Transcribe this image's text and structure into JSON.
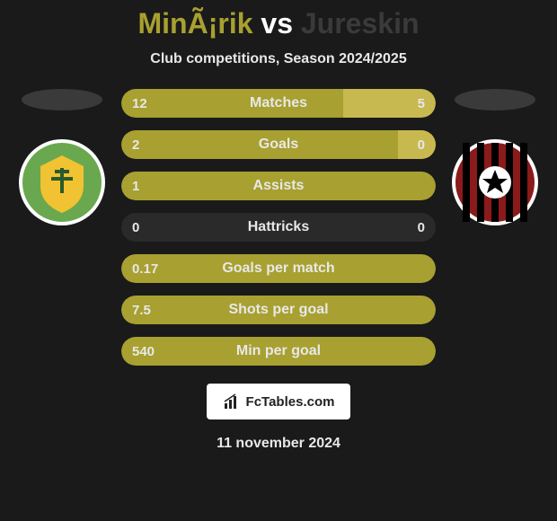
{
  "title": {
    "player1": "MinÃ¡rik",
    "vs": "vs",
    "player2": "Jureskin"
  },
  "subtitle": "Club competitions, Season 2024/2025",
  "footer": {
    "brand": "FcTables.com",
    "date": "11 november 2024"
  },
  "colors": {
    "p1_bar": "#a8a030",
    "p2_bar": "#c8b850",
    "track": "#2a2a2a",
    "bg": "#1a1a1a",
    "title_p1": "#a8a030",
    "title_p2": "#3a3a3a"
  },
  "club_logos": {
    "left": {
      "name": "MSK Zilina",
      "bg": "#6aa84f",
      "accent": "#f1c232"
    },
    "right": {
      "name": "FC Spartak Trnava",
      "bg": "#8b1a1a",
      "accent": "#000000"
    }
  },
  "stats": [
    {
      "label": "Matches",
      "p1": "12",
      "p2": "5",
      "p1_pct": 70.6,
      "p2_pct": 29.4,
      "show_p2_val": true
    },
    {
      "label": "Goals",
      "p1": "2",
      "p2": "0",
      "p1_pct": 100,
      "p2_pct": 12,
      "show_p2_val": true
    },
    {
      "label": "Assists",
      "p1": "1",
      "p2": "",
      "p1_pct": 100,
      "p2_pct": 0,
      "show_p2_val": false
    },
    {
      "label": "Hattricks",
      "p1": "0",
      "p2": "0",
      "p1_pct": 0,
      "p2_pct": 0,
      "show_p2_val": true
    },
    {
      "label": "Goals per match",
      "p1": "0.17",
      "p2": "",
      "p1_pct": 100,
      "p2_pct": 0,
      "show_p2_val": false
    },
    {
      "label": "Shots per goal",
      "p1": "7.5",
      "p2": "",
      "p1_pct": 100,
      "p2_pct": 0,
      "show_p2_val": false
    },
    {
      "label": "Min per goal",
      "p1": "540",
      "p2": "",
      "p1_pct": 100,
      "p2_pct": 0,
      "show_p2_val": false
    }
  ]
}
